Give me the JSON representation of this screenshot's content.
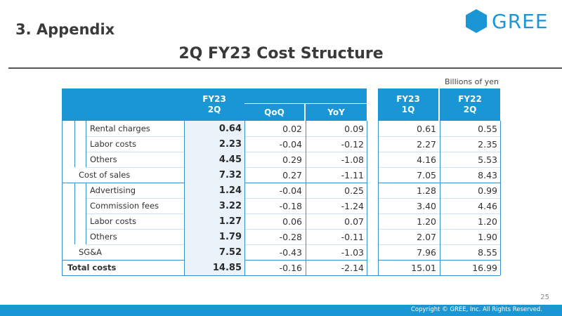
{
  "section_title": "3. Appendix",
  "logo_text": "GREE",
  "main_title": "2Q FY23 Cost Structure",
  "units": "Billions of yen",
  "headers": {
    "fy23_2q": "FY23\n2Q",
    "qoq": "QoQ",
    "yoy": "YoY",
    "fy23_1q": "FY23\n1Q",
    "fy22_2q": "FY22\n2Q"
  },
  "rows": [
    {
      "label": "Rental charges",
      "indent": 2,
      "fy23_2q": "0.64",
      "qoq": "0.02",
      "yoy": "0.09",
      "fy23_1q": "0.61",
      "fy22_2q": "0.55"
    },
    {
      "label": "Labor costs",
      "indent": 2,
      "fy23_2q": "2.23",
      "qoq": "-0.04",
      "yoy": "-0.12",
      "fy23_1q": "2.27",
      "fy22_2q": "2.35"
    },
    {
      "label": "Others",
      "indent": 2,
      "fy23_2q": "4.45",
      "qoq": "0.29",
      "yoy": "-1.08",
      "fy23_1q": "4.16",
      "fy22_2q": "5.53"
    },
    {
      "label": "Cost of sales",
      "indent": 1,
      "fy23_2q": "7.32",
      "qoq": "0.27",
      "yoy": "-1.11",
      "fy23_1q": "7.05",
      "fy22_2q": "8.43"
    },
    {
      "label": "Advertising",
      "indent": 2,
      "fy23_2q": "1.24",
      "qoq": "-0.04",
      "yoy": "0.25",
      "fy23_1q": "1.28",
      "fy22_2q": "0.99"
    },
    {
      "label": "Commission fees",
      "indent": 2,
      "fy23_2q": "3.22",
      "qoq": "-0.18",
      "yoy": "-1.24",
      "fy23_1q": "3.40",
      "fy22_2q": "4.46"
    },
    {
      "label": "Labor costs",
      "indent": 2,
      "fy23_2q": "1.27",
      "qoq": "0.06",
      "yoy": "0.07",
      "fy23_1q": "1.20",
      "fy22_2q": "1.20"
    },
    {
      "label": "Others",
      "indent": 2,
      "fy23_2q": "1.79",
      "qoq": "-0.28",
      "yoy": "-0.11",
      "fy23_1q": "2.07",
      "fy22_2q": "1.90"
    },
    {
      "label": "SG&A",
      "indent": 1,
      "fy23_2q": "7.52",
      "qoq": "-0.43",
      "yoy": "-1.03",
      "fy23_1q": "7.96",
      "fy22_2q": "8.55"
    },
    {
      "label": "Total costs",
      "indent": 0,
      "fy23_2q": "14.85",
      "qoq": "-0.16",
      "yoy": "-2.14",
      "fy23_1q": "15.01",
      "fy22_2q": "16.99"
    }
  ],
  "page_number": "25",
  "copyright": "Copyright © GREE, Inc. All Rights Reserved.",
  "colors": {
    "brand": "#1a96d4",
    "highlight": "#eaf3fa"
  }
}
